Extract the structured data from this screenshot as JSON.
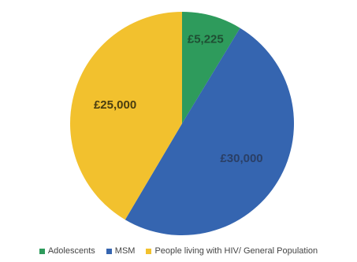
{
  "chart_data": {
    "type": "pie",
    "categories": [
      "Adolescents",
      "MSM",
      "People living with HIV/ General Population"
    ],
    "values": [
      5225,
      30000,
      25000
    ],
    "data_labels": [
      "£5,225",
      "£30,000",
      "£25,000"
    ],
    "colors": [
      "#2e9b5c",
      "#3565b0",
      "#f2c12e"
    ],
    "label_colors": [
      "#1f4f33",
      "#2a3f66",
      "#4a3d10"
    ],
    "start_angle_deg": 0,
    "direction": "clockwise",
    "legend_position": "bottom",
    "title": ""
  }
}
